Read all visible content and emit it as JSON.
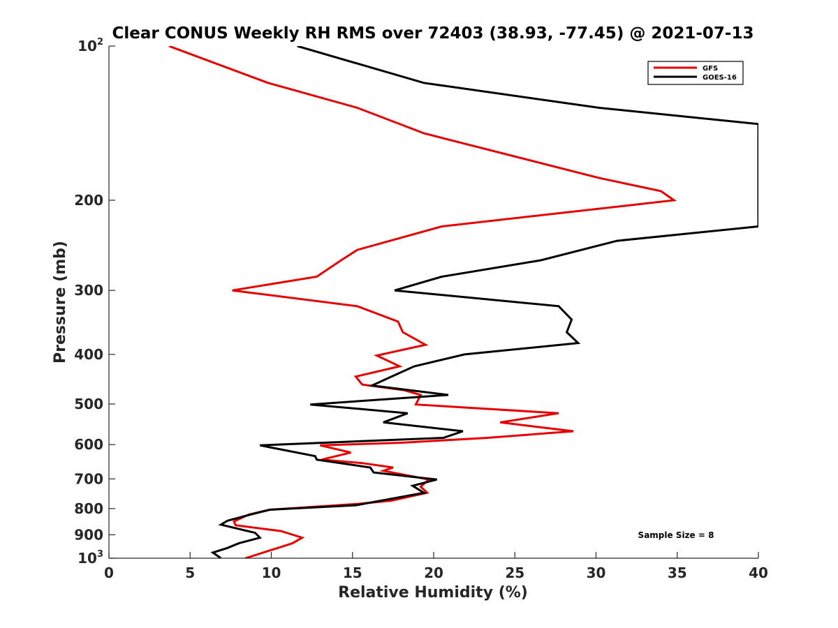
{
  "chart_data": {
    "type": "line",
    "title": "Clear CONUS Weekly RH RMS over 72403 (38.93, -77.45) @ 2021-07-13",
    "xlabel": "Relative Humidity (%)",
    "ylabel": "Pressure (mb)",
    "xlim": [
      0,
      40
    ],
    "ylim": [
      100,
      1000
    ],
    "yscale": "log",
    "y_reversed": true,
    "grid": false,
    "legend_position": "top-right",
    "x_ticks": [
      0,
      5,
      10,
      15,
      20,
      25,
      30,
      35,
      40
    ],
    "x_tick_labels": [
      "0",
      "5",
      "10",
      "15",
      "20",
      "25",
      "30",
      "35",
      "40"
    ],
    "y_ticks": [
      100,
      200,
      300,
      400,
      500,
      600,
      700,
      800,
      900,
      1000
    ],
    "y_tick_labels": [
      {
        "base": "10",
        "sup": "2"
      },
      {
        "base": "200",
        "sup": ""
      },
      {
        "base": "300",
        "sup": ""
      },
      {
        "base": "400",
        "sup": ""
      },
      {
        "base": "500",
        "sup": ""
      },
      {
        "base": "600",
        "sup": ""
      },
      {
        "base": "700",
        "sup": ""
      },
      {
        "base": "800",
        "sup": ""
      },
      {
        "base": "900",
        "sup": ""
      },
      {
        "base": "10",
        "sup": "3"
      }
    ],
    "annotation": "Sample Size = 8",
    "series": [
      {
        "name": "GFS",
        "color": "#e60000",
        "points": [
          [
            3.7,
            100
          ],
          [
            9.8,
            118
          ],
          [
            15.3,
            132
          ],
          [
            19.4,
            148
          ],
          [
            30.2,
            181
          ],
          [
            34.0,
            192
          ],
          [
            34.8,
            200
          ],
          [
            20.5,
            225
          ],
          [
            15.3,
            250
          ],
          [
            14.3,
            262
          ],
          [
            12.8,
            282
          ],
          [
            7.6,
            300
          ],
          [
            15.3,
            322
          ],
          [
            17.8,
            345
          ],
          [
            18.1,
            362
          ],
          [
            19.5,
            383
          ],
          [
            16.5,
            402
          ],
          [
            17.9,
            422
          ],
          [
            15.2,
            442
          ],
          [
            15.6,
            458
          ],
          [
            18.2,
            470
          ],
          [
            19.2,
            480
          ],
          [
            18.9,
            501
          ],
          [
            27.7,
            521
          ],
          [
            24.1,
            543
          ],
          [
            28.6,
            565
          ],
          [
            23.3,
            582
          ],
          [
            18.0,
            595
          ],
          [
            13.0,
            602
          ],
          [
            14.9,
            622
          ],
          [
            13.1,
            642
          ],
          [
            15.6,
            652
          ],
          [
            17.5,
            665
          ],
          [
            16.9,
            675
          ],
          [
            19.7,
            702
          ],
          [
            19.2,
            725
          ],
          [
            19.6,
            745
          ],
          [
            17.4,
            772
          ],
          [
            15.4,
            783
          ],
          [
            9.9,
            804
          ],
          [
            8.6,
            822
          ],
          [
            7.7,
            848
          ],
          [
            7.8,
            862
          ],
          [
            10.6,
            885
          ],
          [
            11.9,
            912
          ],
          [
            11.3,
            935
          ],
          [
            10.4,
            955
          ],
          [
            8.4,
            1000
          ]
        ]
      },
      {
        "name": "GOES-16",
        "color": "#000000",
        "points": [
          [
            11.6,
            100
          ],
          [
            19.4,
            118
          ],
          [
            30.2,
            132
          ],
          [
            40.0,
            142
          ],
          [
            40.0,
            225
          ],
          [
            31.3,
            240
          ],
          [
            26.6,
            262
          ],
          [
            20.5,
            282
          ],
          [
            17.6,
            300
          ],
          [
            27.7,
            322
          ],
          [
            28.5,
            342
          ],
          [
            28.2,
            362
          ],
          [
            28.9,
            380
          ],
          [
            21.9,
            400
          ],
          [
            18.8,
            422
          ],
          [
            17.4,
            442
          ],
          [
            16.2,
            460
          ],
          [
            20.9,
            480
          ],
          [
            12.4,
            501
          ],
          [
            18.4,
            521
          ],
          [
            16.9,
            543
          ],
          [
            21.8,
            565
          ],
          [
            20.6,
            582
          ],
          [
            9.3,
            602
          ],
          [
            12.7,
            632
          ],
          [
            12.8,
            642
          ],
          [
            16.1,
            665
          ],
          [
            16.3,
            680
          ],
          [
            20.2,
            702
          ],
          [
            18.7,
            722
          ],
          [
            19.4,
            745
          ],
          [
            15.2,
            788
          ],
          [
            9.9,
            804
          ],
          [
            8.7,
            822
          ],
          [
            7.3,
            845
          ],
          [
            6.9,
            860
          ],
          [
            9.0,
            892
          ],
          [
            9.3,
            912
          ],
          [
            8.0,
            935
          ],
          [
            7.3,
            955
          ],
          [
            6.4,
            975
          ],
          [
            6.9,
            1000
          ]
        ]
      }
    ]
  }
}
